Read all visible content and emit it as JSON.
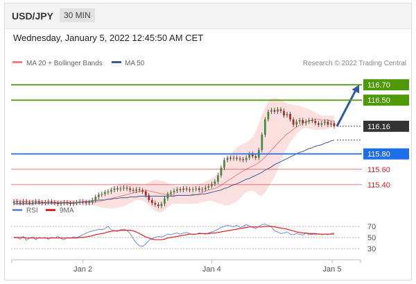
{
  "header": {
    "symbol": "USD/JPY",
    "timeframe": "30 MIN"
  },
  "datetime": "Wednesday, January 5, 2022 12:45:50 AM CET",
  "legend_top": [
    {
      "label": "MA 20 + Bollinger Bands",
      "color": "#f08080"
    },
    {
      "label": "MA 50",
      "color": "#3a5a9a"
    }
  ],
  "credit": "Research © 2022 Trading Central",
  "legend_bottom": [
    {
      "label": "RSI",
      "color": "#6f8fd8"
    },
    {
      "label": "9MA",
      "color": "#e02020"
    }
  ],
  "chart_data": [
    {
      "type": "candlestick",
      "x_tick_labels": [
        "Jan 2",
        "Jan 4",
        "Jan 5"
      ],
      "ylim": [
        115.2,
        116.9
      ],
      "price_levels": [
        {
          "value": 116.7,
          "label": "116.70",
          "kind": "resistance",
          "color": "#4e9a06"
        },
        {
          "value": 116.5,
          "label": "116.50",
          "kind": "resistance",
          "color": "#4e9a06"
        },
        {
          "value": 116.16,
          "label": "116.16",
          "kind": "last price",
          "color": "#333333"
        },
        {
          "value": 115.8,
          "label": "115.80",
          "kind": "pivot",
          "color": "#1e6ee8"
        },
        {
          "value": 115.6,
          "label": "115.60",
          "kind": "support",
          "color": "#d42020"
        },
        {
          "value": 115.4,
          "label": "115.40",
          "kind": "support",
          "color": "#d42020"
        }
      ],
      "close": [
        115.18,
        115.17,
        115.16,
        115.18,
        115.17,
        115.16,
        115.17,
        115.18,
        115.17,
        115.16,
        115.17,
        115.18,
        115.17,
        115.16,
        115.15,
        115.16,
        115.17,
        115.16,
        115.15,
        115.16,
        115.17,
        115.18,
        115.17,
        115.16,
        115.17,
        115.2,
        115.24,
        115.27,
        115.28,
        115.3,
        115.31,
        115.33,
        115.35,
        115.34,
        115.35,
        115.36,
        115.35,
        115.33,
        115.32,
        115.34,
        115.33,
        115.31,
        115.26,
        115.2,
        115.16,
        115.14,
        115.12,
        115.15,
        115.22,
        115.28,
        115.3,
        115.32,
        115.34,
        115.33,
        115.35,
        115.34,
        115.33,
        115.34,
        115.35,
        115.33,
        115.34,
        115.36,
        115.38,
        115.41,
        115.44,
        115.52,
        115.62,
        115.72,
        115.75,
        115.74,
        115.75,
        115.74,
        115.73,
        115.72,
        115.75,
        115.8,
        115.77,
        115.75,
        115.85,
        116.05,
        116.25,
        116.35,
        116.37,
        116.35,
        116.38,
        116.36,
        116.3,
        116.32,
        116.25,
        116.18,
        116.22,
        116.24,
        116.2,
        116.22,
        116.24,
        116.23,
        116.2,
        116.18,
        116.2,
        116.22,
        116.18,
        116.2,
        116.16
      ],
      "ma20": [
        115.18,
        115.18,
        115.18,
        115.18,
        115.18,
        115.18,
        115.18,
        115.18,
        115.18,
        115.17,
        115.17,
        115.17,
        115.17,
        115.17,
        115.17,
        115.17,
        115.17,
        115.17,
        115.17,
        115.17,
        115.17,
        115.17,
        115.17,
        115.17,
        115.17,
        115.17,
        115.17,
        115.18,
        115.19,
        115.2,
        115.21,
        115.22,
        115.23,
        115.24,
        115.25,
        115.26,
        115.27,
        115.28,
        115.29,
        115.3,
        115.31,
        115.31,
        115.32,
        115.32,
        115.31,
        115.3,
        115.29,
        115.28,
        115.28,
        115.27,
        115.27,
        115.26,
        115.26,
        115.26,
        115.26,
        115.26,
        115.26,
        115.26,
        115.27,
        115.28,
        115.3,
        115.32,
        115.33,
        115.34,
        115.35,
        115.37,
        115.39,
        115.42,
        115.45,
        115.47,
        115.5,
        115.53,
        115.55,
        115.58,
        115.6,
        115.62,
        115.64,
        115.66,
        115.69,
        115.72,
        115.76,
        115.8,
        115.85,
        115.89,
        115.94,
        115.98,
        116.02,
        116.06,
        116.09,
        116.12,
        116.15,
        116.17,
        116.2,
        116.22,
        116.23,
        116.24,
        116.25,
        116.25,
        116.24,
        116.24,
        116.24,
        116.23,
        116.23
      ],
      "upper_band": [
        115.22,
        115.22,
        115.22,
        115.22,
        115.21,
        115.21,
        115.21,
        115.21,
        115.21,
        115.2,
        115.2,
        115.2,
        115.2,
        115.2,
        115.2,
        115.2,
        115.2,
        115.2,
        115.2,
        115.2,
        115.2,
        115.21,
        115.21,
        115.21,
        115.21,
        115.22,
        115.24,
        115.26,
        115.29,
        115.31,
        115.34,
        115.36,
        115.38,
        115.4,
        115.41,
        115.42,
        115.42,
        115.42,
        115.42,
        115.41,
        115.41,
        115.4,
        115.41,
        115.43,
        115.45,
        115.46,
        115.46,
        115.45,
        115.44,
        115.42,
        115.4,
        115.39,
        115.38,
        115.38,
        115.39,
        115.39,
        115.39,
        115.39,
        115.4,
        115.41,
        115.42,
        115.44,
        115.46,
        115.48,
        115.51,
        115.55,
        115.6,
        115.67,
        115.73,
        115.79,
        115.84,
        115.88,
        115.91,
        115.93,
        115.95,
        115.98,
        116.02,
        116.09,
        116.2,
        116.31,
        116.41,
        116.48,
        116.52,
        116.53,
        116.52,
        116.5,
        116.48,
        116.46,
        116.45,
        116.44,
        116.43,
        116.42,
        116.41,
        116.4,
        116.38,
        116.36,
        116.34,
        116.32,
        116.3,
        116.3,
        116.3,
        116.3,
        116.3
      ],
      "lower_band": [
        115.13,
        115.13,
        115.13,
        115.13,
        115.13,
        115.13,
        115.13,
        115.13,
        115.13,
        115.13,
        115.13,
        115.13,
        115.13,
        115.13,
        115.13,
        115.13,
        115.13,
        115.13,
        115.13,
        115.13,
        115.13,
        115.13,
        115.13,
        115.13,
        115.13,
        115.13,
        115.12,
        115.11,
        115.1,
        115.1,
        115.09,
        115.09,
        115.09,
        115.1,
        115.11,
        115.12,
        115.14,
        115.16,
        115.18,
        115.2,
        115.2,
        115.19,
        115.17,
        115.13,
        115.09,
        115.06,
        115.04,
        115.04,
        115.07,
        115.11,
        115.14,
        115.15,
        115.15,
        115.15,
        115.15,
        115.15,
        115.15,
        115.15,
        115.15,
        115.16,
        115.17,
        115.18,
        115.19,
        115.19,
        115.18,
        115.16,
        115.15,
        115.13,
        115.13,
        115.14,
        115.16,
        115.18,
        115.22,
        115.27,
        115.3,
        115.32,
        115.32,
        115.3,
        115.26,
        115.25,
        115.3,
        115.36,
        115.43,
        115.5,
        115.6,
        115.7,
        115.8,
        115.88,
        115.95,
        116.01,
        116.06,
        116.1,
        116.13,
        116.14,
        116.13,
        116.12,
        116.11,
        116.11,
        116.11,
        116.12,
        116.13,
        116.14,
        116.15
      ],
      "ma50": [
        115.15,
        115.15,
        115.15,
        115.15,
        115.15,
        115.15,
        115.15,
        115.16,
        115.16,
        115.16,
        115.16,
        115.16,
        115.16,
        115.16,
        115.16,
        115.16,
        115.16,
        115.16,
        115.16,
        115.16,
        115.16,
        115.17,
        115.17,
        115.18,
        115.18,
        115.19,
        115.19,
        115.2,
        115.2,
        115.2,
        115.21,
        115.21,
        115.22,
        115.22,
        115.23,
        115.23,
        115.23,
        115.24,
        115.24,
        115.24,
        115.25,
        115.25,
        115.25,
        115.25,
        115.25,
        115.25,
        115.25,
        115.25,
        115.25,
        115.25,
        115.25,
        115.25,
        115.26,
        115.26,
        115.26,
        115.26,
        115.26,
        115.27,
        115.27,
        115.27,
        115.28,
        115.28,
        115.29,
        115.3,
        115.31,
        115.32,
        115.33,
        115.35,
        115.36,
        115.38,
        115.4,
        115.41,
        115.43,
        115.45,
        115.47,
        115.48,
        115.5,
        115.52,
        115.54,
        115.56,
        115.59,
        115.61,
        115.63,
        115.66,
        115.68,
        115.7,
        115.72,
        115.74,
        115.76,
        115.78,
        115.8,
        115.82,
        115.83,
        115.85,
        115.87,
        115.88,
        115.9,
        115.91,
        115.92,
        115.94,
        115.95,
        115.97,
        115.98
      ]
    },
    {
      "type": "line",
      "series": [
        {
          "name": "RSI"
        },
        {
          "name": "9MA"
        }
      ],
      "y_tick_labels": [
        "70",
        "50",
        "30"
      ],
      "levels": [
        70,
        50,
        30
      ],
      "rsi": [
        49,
        50,
        47,
        52,
        45,
        49,
        51,
        46,
        50,
        49,
        50,
        47,
        50,
        49,
        52,
        48,
        46,
        50,
        49,
        51,
        50,
        52,
        55,
        58,
        60,
        62,
        63,
        65,
        64,
        66,
        70,
        64,
        62,
        61,
        64,
        65,
        63,
        57,
        48,
        40,
        35,
        34,
        38,
        45,
        48,
        50,
        52,
        51,
        53,
        56,
        55,
        57,
        58,
        56,
        58,
        59,
        57,
        55,
        56,
        58,
        57,
        56,
        58,
        60,
        62,
        65,
        68,
        70,
        72,
        71,
        69,
        72,
        68,
        70,
        73,
        71,
        68,
        66,
        70,
        73,
        74,
        72,
        69,
        62,
        60,
        57,
        58,
        60,
        56,
        55,
        57,
        56,
        54,
        58,
        55,
        56,
        55,
        57,
        55,
        56,
        55,
        57,
        58
      ],
      "ma9": [
        50,
        50,
        50,
        50,
        49,
        49,
        49,
        49,
        49,
        49,
        49,
        49,
        49,
        49,
        49,
        49,
        49,
        49,
        49,
        49,
        49,
        50,
        50,
        51,
        52,
        53,
        55,
        56,
        57,
        58,
        60,
        61,
        62,
        62,
        63,
        63,
        63,
        63,
        62,
        60,
        57,
        54,
        51,
        49,
        47,
        46,
        46,
        46,
        47,
        49,
        50,
        51,
        52,
        53,
        54,
        55,
        56,
        56,
        56,
        57,
        57,
        57,
        57,
        58,
        58,
        59,
        60,
        61,
        62,
        63,
        64,
        65,
        66,
        67,
        68,
        69,
        69,
        69,
        69,
        69,
        70,
        70,
        70,
        69,
        68,
        67,
        66,
        65,
        63,
        62,
        60,
        59,
        58,
        58,
        57,
        57,
        57,
        56,
        56,
        56,
        56,
        56,
        56
      ]
    }
  ]
}
